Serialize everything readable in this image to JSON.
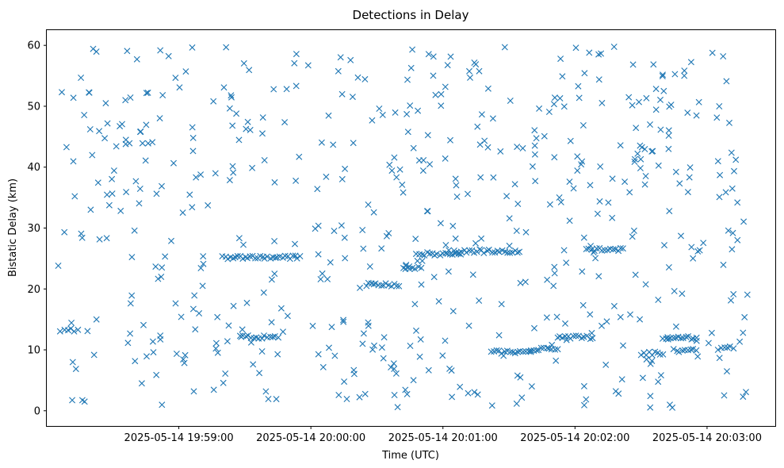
{
  "chart_data": {
    "type": "scatter",
    "title": "Detections in Delay",
    "xlabel": "Time (UTC)",
    "ylabel": "Bistatic Delay (km)",
    "marker": "x",
    "color": "#1f77b4",
    "grid": false,
    "legend": "none",
    "xlim": [
      "2025-05-14 19:58:00",
      "2025-05-14 20:03:31"
    ],
    "ylim": [
      -2.5,
      62.5
    ],
    "xticks": [
      "2025-05-14 19:59:00",
      "2025-05-14 20:00:00",
      "2025-05-14 20:01:00",
      "2025-05-14 20:02:00",
      "2025-05-14 20:03:00"
    ],
    "yticks": [
      0,
      10,
      20,
      30,
      40,
      50,
      60
    ],
    "time_range": [
      "2025-05-14 19:58:05",
      "2025-05-14 20:03:20"
    ],
    "dense_bands": [
      {
        "from": "2025-05-14 19:58:08",
        "to": "2025-05-14 19:58:14",
        "y": 13.2
      },
      {
        "from": "2025-05-14 19:59:28",
        "to": "2025-05-14 19:59:45",
        "y": 12.1
      },
      {
        "from": "2025-05-14 19:59:20",
        "to": "2025-05-14 19:59:55",
        "y": 25.2
      },
      {
        "from": "2025-05-14 20:00:25",
        "to": "2025-05-14 20:00:40",
        "y": 20.7
      },
      {
        "from": "2025-05-14 20:00:42",
        "to": "2025-05-14 20:00:50",
        "y": 23.5
      },
      {
        "from": "2025-05-14 20:00:48",
        "to": "2025-05-14 20:01:08",
        "y": 25.8
      },
      {
        "from": "2025-05-14 20:01:05",
        "to": "2025-05-14 20:01:35",
        "y": 26.2
      },
      {
        "from": "2025-05-14 20:01:22",
        "to": "2025-05-14 20:01:40",
        "y": 9.6
      },
      {
        "from": "2025-05-14 20:01:40",
        "to": "2025-05-14 20:01:52",
        "y": 10.1
      },
      {
        "from": "2025-05-14 20:01:52",
        "to": "2025-05-14 20:02:08",
        "y": 12.1
      },
      {
        "from": "2025-05-14 20:02:05",
        "to": "2025-05-14 20:02:22",
        "y": 26.5
      },
      {
        "from": "2025-05-14 20:02:30",
        "to": "2025-05-14 20:02:40",
        "y": 9.4
      },
      {
        "from": "2025-05-14 20:02:40",
        "to": "2025-05-14 20:02:55",
        "y": 12.0
      },
      {
        "from": "2025-05-14 20:02:45",
        "to": "2025-05-14 20:02:55",
        "y": 9.9
      },
      {
        "from": "2025-05-14 20:03:05",
        "to": "2025-05-14 20:03:12",
        "y": 10.3
      }
    ],
    "random_detection_count": 560,
    "y_noise_range": [
      0.5,
      60
    ]
  }
}
